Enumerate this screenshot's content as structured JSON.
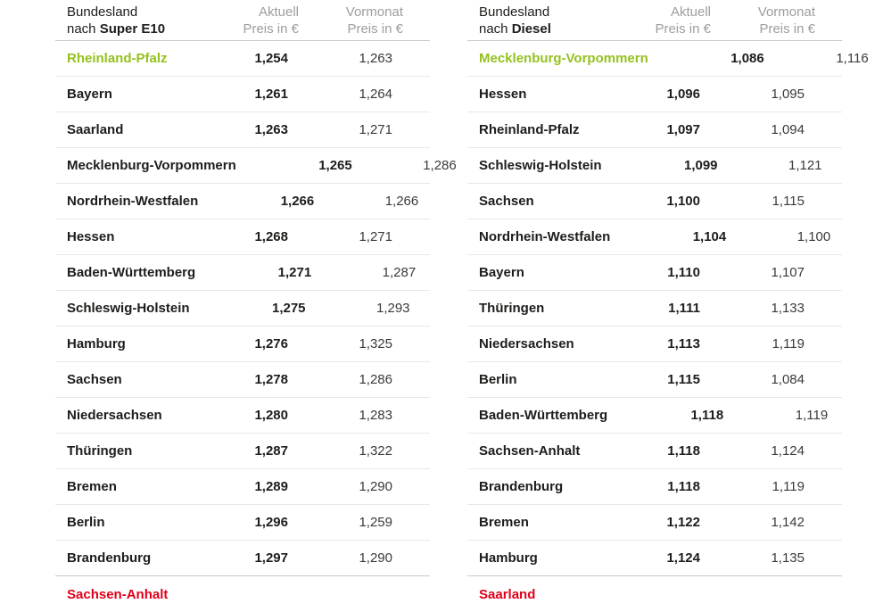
{
  "colors": {
    "cheapest_text": "#95c11f",
    "most_expensive_text": "#e2001a",
    "header_muted": "#9d9d9c",
    "text_dark": "#1d1d1b",
    "row_divider": "#e8e8e8",
    "section_divider": "#c9c9c9"
  },
  "tables": [
    {
      "header": {
        "category_line1": "Bundesland",
        "category_line2_prefix": "nach",
        "fuel_label": "Super E10",
        "current_line1": "Aktuell",
        "current_line2": "Preis in €",
        "previous_line1": "Vormonat",
        "previous_line2": "Preis in €"
      },
      "rows": [
        {
          "name": "Rheinland-Pfalz",
          "aktuell": "1,254",
          "vormonat": "1,263",
          "highlight": "best"
        },
        {
          "name": "Bayern",
          "aktuell": "1,261",
          "vormonat": "1,264"
        },
        {
          "name": "Saarland",
          "aktuell": "1,263",
          "vormonat": "1,271"
        },
        {
          "name": "Mecklenburg-Vorpommern",
          "aktuell": "1,265",
          "vormonat": "1,286"
        },
        {
          "name": "Nordrhein-Westfalen",
          "aktuell": "1,266",
          "vormonat": "1,266"
        },
        {
          "name": "Hessen",
          "aktuell": "1,268",
          "vormonat": "1,271"
        },
        {
          "name": "Baden-Württemberg",
          "aktuell": "1,271",
          "vormonat": "1,287"
        },
        {
          "name": "Schleswig-Holstein",
          "aktuell": "1,275",
          "vormonat": "1,293"
        },
        {
          "name": "Hamburg",
          "aktuell": "1,276",
          "vormonat": "1,325"
        },
        {
          "name": "Sachsen",
          "aktuell": "1,278",
          "vormonat": "1,286"
        },
        {
          "name": "Niedersachsen",
          "aktuell": "1,280",
          "vormonat": "1,283"
        },
        {
          "name": "Thüringen",
          "aktuell": "1,287",
          "vormonat": "1,322"
        },
        {
          "name": "Bremen",
          "aktuell": "1,289",
          "vormonat": "1,290"
        },
        {
          "name": "Berlin",
          "aktuell": "1,296",
          "vormonat": "1,259"
        },
        {
          "name": "Brandenburg",
          "aktuell": "1,297",
          "vormonat": "1,290"
        }
      ],
      "cutoff_row": {
        "name": "Sachsen-Anhalt",
        "aktuell": "",
        "vormonat": "",
        "highlight": "worst"
      }
    },
    {
      "header": {
        "category_line1": "Bundesland",
        "category_line2_prefix": "nach",
        "fuel_label": "Diesel",
        "current_line1": "Aktuell",
        "current_line2": "Preis in €",
        "previous_line1": "Vormonat",
        "previous_line2": "Preis in €"
      },
      "rows": [
        {
          "name": "Mecklenburg-Vorpommern",
          "aktuell": "1,086",
          "vormonat": "1,116",
          "highlight": "best"
        },
        {
          "name": "Hessen",
          "aktuell": "1,096",
          "vormonat": "1,095"
        },
        {
          "name": "Rheinland-Pfalz",
          "aktuell": "1,097",
          "vormonat": "1,094"
        },
        {
          "name": "Schleswig-Holstein",
          "aktuell": "1,099",
          "vormonat": "1,121"
        },
        {
          "name": "Sachsen",
          "aktuell": "1,100",
          "vormonat": "1,115"
        },
        {
          "name": "Nordrhein-Westfalen",
          "aktuell": "1,104",
          "vormonat": "1,100"
        },
        {
          "name": "Bayern",
          "aktuell": "1,110",
          "vormonat": "1,107"
        },
        {
          "name": "Thüringen",
          "aktuell": "1,111",
          "vormonat": "1,133"
        },
        {
          "name": "Niedersachsen",
          "aktuell": "1,113",
          "vormonat": "1,119"
        },
        {
          "name": "Berlin",
          "aktuell": "1,115",
          "vormonat": "1,084"
        },
        {
          "name": "Baden-Württemberg",
          "aktuell": "1,118",
          "vormonat": "1,119"
        },
        {
          "name": "Sachsen-Anhalt",
          "aktuell": "1,118",
          "vormonat": "1,124"
        },
        {
          "name": "Brandenburg",
          "aktuell": "1,118",
          "vormonat": "1,119"
        },
        {
          "name": "Bremen",
          "aktuell": "1,122",
          "vormonat": "1,142"
        },
        {
          "name": "Hamburg",
          "aktuell": "1,124",
          "vormonat": "1,135"
        }
      ],
      "cutoff_row": {
        "name": "Saarland",
        "aktuell": "",
        "vormonat": "",
        "highlight": "worst"
      }
    }
  ],
  "chart_data": [
    {
      "type": "table",
      "title": "Bundesland nach Super E10",
      "columns": [
        "Bundesland",
        "Aktuell Preis in €",
        "Vormonat Preis in €"
      ],
      "rows": [
        [
          "Rheinland-Pfalz",
          1.254,
          1.263
        ],
        [
          "Bayern",
          1.261,
          1.264
        ],
        [
          "Saarland",
          1.263,
          1.271
        ],
        [
          "Mecklenburg-Vorpommern",
          1.265,
          1.286
        ],
        [
          "Nordrhein-Westfalen",
          1.266,
          1.266
        ],
        [
          "Hessen",
          1.268,
          1.271
        ],
        [
          "Baden-Württemberg",
          1.271,
          1.287
        ],
        [
          "Schleswig-Holstein",
          1.275,
          1.293
        ],
        [
          "Hamburg",
          1.276,
          1.325
        ],
        [
          "Sachsen",
          1.278,
          1.286
        ],
        [
          "Niedersachsen",
          1.28,
          1.283
        ],
        [
          "Thüringen",
          1.287,
          1.322
        ],
        [
          "Bremen",
          1.289,
          1.29
        ],
        [
          "Berlin",
          1.296,
          1.259
        ],
        [
          "Brandenburg",
          1.297,
          1.29
        ]
      ],
      "highlight_cheapest": "Rheinland-Pfalz"
    },
    {
      "type": "table",
      "title": "Bundesland nach Diesel",
      "columns": [
        "Bundesland",
        "Aktuell Preis in €",
        "Vormonat Preis in €"
      ],
      "rows": [
        [
          "Mecklenburg-Vorpommern",
          1.086,
          1.116
        ],
        [
          "Hessen",
          1.096,
          1.095
        ],
        [
          "Rheinland-Pfalz",
          1.097,
          1.094
        ],
        [
          "Schleswig-Holstein",
          1.099,
          1.121
        ],
        [
          "Sachsen",
          1.1,
          1.115
        ],
        [
          "Nordrhein-Westfalen",
          1.104,
          1.1
        ],
        [
          "Bayern",
          1.11,
          1.107
        ],
        [
          "Thüringen",
          1.111,
          1.133
        ],
        [
          "Niedersachsen",
          1.113,
          1.119
        ],
        [
          "Berlin",
          1.115,
          1.084
        ],
        [
          "Baden-Württemberg",
          1.118,
          1.119
        ],
        [
          "Sachsen-Anhalt",
          1.118,
          1.124
        ],
        [
          "Brandenburg",
          1.118,
          1.119
        ],
        [
          "Bremen",
          1.122,
          1.142
        ],
        [
          "Hamburg",
          1.124,
          1.135
        ]
      ],
      "highlight_cheapest": "Mecklenburg-Vorpommern"
    }
  ]
}
